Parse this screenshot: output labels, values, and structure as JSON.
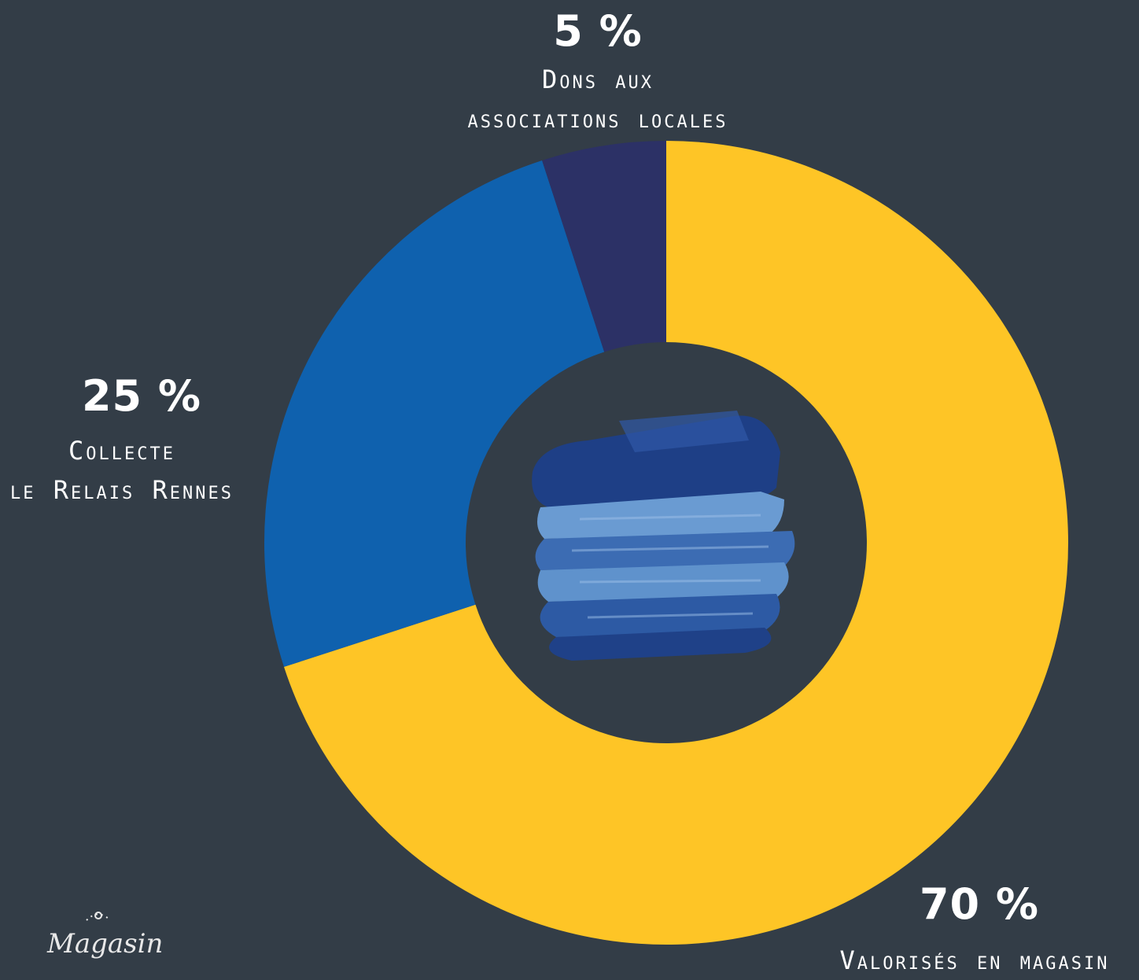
{
  "chart_data": {
    "type": "pie",
    "variant": "donut",
    "slices": [
      {
        "name": "Valorisés en magasin",
        "value": 70,
        "color": "#fec526"
      },
      {
        "name": "Collecte le Relais Rennes",
        "value": 25,
        "color": "#0f61ae"
      },
      {
        "name": "Dons aux associations locales",
        "value": 5,
        "color": "#2c3166"
      }
    ],
    "center_icon": "folded-jeans-icon"
  },
  "labels": {
    "dons": {
      "pct": "5 %",
      "line1": "Dons aux",
      "line2": "associations locales"
    },
    "collecte": {
      "pct": "25 %",
      "line1": "Collecte",
      "line2": "le Relais Rennes"
    },
    "valor": {
      "pct": "70 %",
      "line1": "Valorisés en magasin"
    }
  },
  "logo": {
    "text": "Magasin"
  },
  "colors": {
    "background": "#333d47"
  }
}
